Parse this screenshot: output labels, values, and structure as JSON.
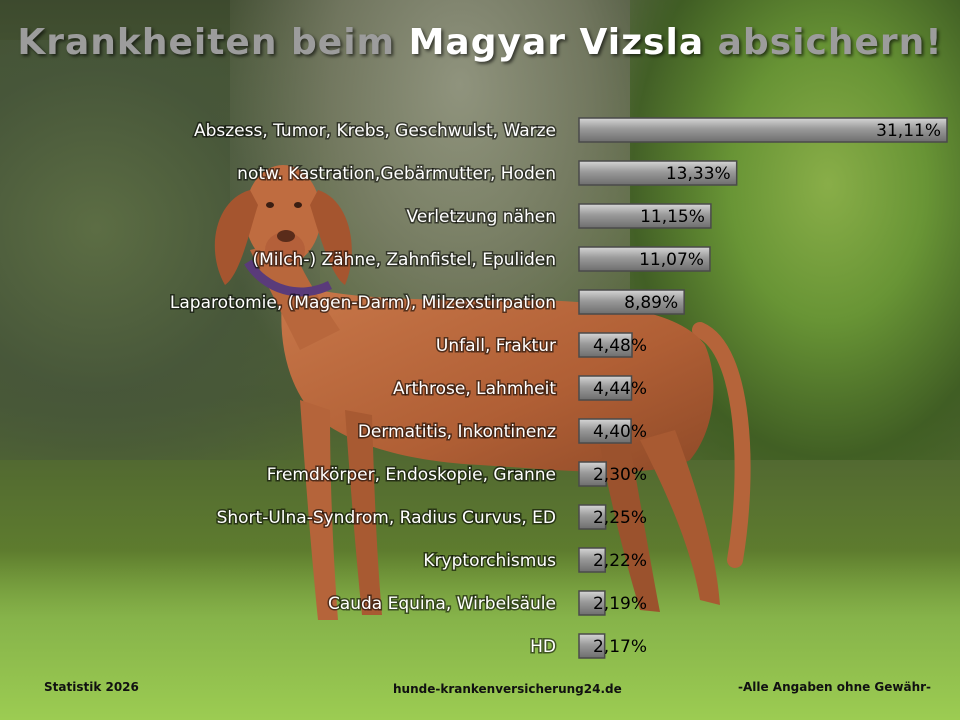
{
  "title": {
    "part1": "Krankheiten beim ",
    "part2": "Magyar Vizsla",
    "part3": " absichern!"
  },
  "chart_data": {
    "type": "bar",
    "orientation": "horizontal",
    "categories": [
      "Abszess, Tumor, Krebs, Geschwulst, Warze",
      "notw. Kastration,Gebärmutter, Hoden",
      "Verletzung nähen",
      "(Milch-) Zähne, Zahnfistel, Epuliden",
      "Laparotomie, (Magen-Darm), Milzexstirpation",
      "Unfall, Fraktur",
      "Arthrose, Lahmheit",
      "Dermatitis, Inkontinenz",
      "Fremdkörper, Endoskopie, Granne",
      "Short-Ulna-Syndrom, Radius Curvus, ED",
      "Kryptorchismus",
      "Cauda Equina, Wirbelsäule",
      "HD"
    ],
    "values": [
      31.11,
      13.33,
      11.15,
      11.07,
      8.89,
      4.48,
      4.44,
      4.4,
      2.3,
      2.25,
      2.22,
      2.19,
      2.17
    ],
    "value_labels": [
      "31,11%",
      "13,33%",
      "11,15%",
      "11,07%",
      "8,89%",
      "4,48%",
      "4,44%",
      "4,40%",
      "2,30%",
      "2,25%",
      "2,22%",
      "2,19%",
      "2,17%"
    ],
    "xlim": [
      0,
      31.11
    ],
    "bar_color": "#9a9a9a",
    "grid": false,
    "legend": "none"
  },
  "footer": {
    "left": "Statistik 2026",
    "center": "hunde-krankenversicherung24.de",
    "right": "-Alle Angaben ohne Gewähr-"
  },
  "colors": {
    "title_grey": "#9c9c9c",
    "title_white": "#ffffff",
    "label_text": "#ffffff",
    "value_text": "#000000"
  }
}
